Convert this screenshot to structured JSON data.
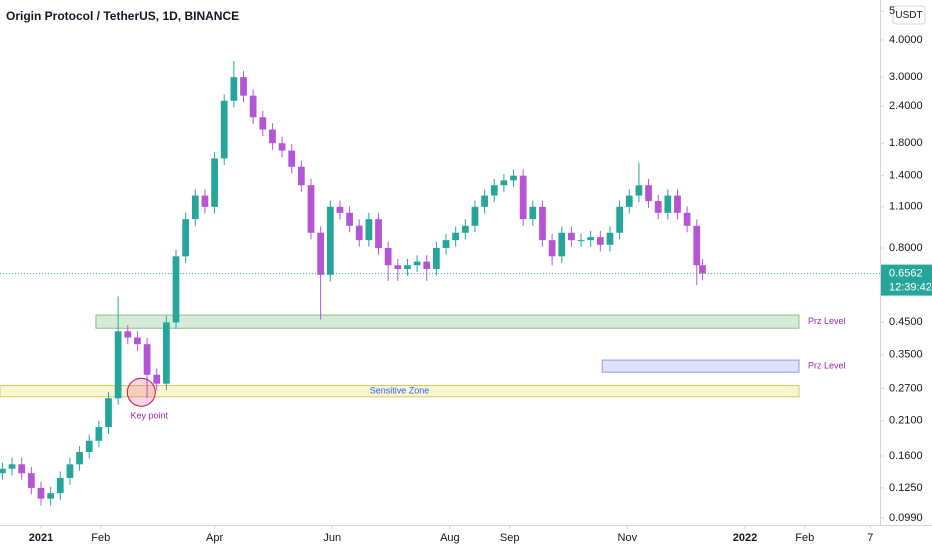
{
  "chart_data": {
    "type": "candlestick",
    "title": "Origin Protocol / TetherUS, 1D, BINANCE",
    "currency": "USDT",
    "log_scale": true,
    "up_color": "#26a69a",
    "down_color": "#b555d6",
    "xlim": [
      -21.25,
      435
    ],
    "ylim": [
      0.0938,
      5.45
    ],
    "xticks": [
      {
        "value": 0,
        "label": "2021"
      },
      {
        "value": 31,
        "label": "Feb"
      },
      {
        "value": 90,
        "label": "Apr"
      },
      {
        "value": 151,
        "label": "Jun"
      },
      {
        "value": 212,
        "label": "Aug"
      },
      {
        "value": 243,
        "label": "Sep"
      },
      {
        "value": 304,
        "label": "Nov"
      },
      {
        "value": 365,
        "label": "2022"
      },
      {
        "value": 396,
        "label": "Feb"
      },
      {
        "value": 430,
        "label": "7"
      }
    ],
    "yticks": [
      5,
      {
        "value": 4,
        "label": "4.0000"
      },
      {
        "value": 3,
        "label": "3.0000"
      },
      {
        "value": 2.4,
        "label": "2.4000"
      },
      {
        "value": 1.8,
        "label": "1.8000"
      },
      {
        "value": 1.4,
        "label": "1.4000"
      },
      {
        "value": 1.1,
        "label": "1.1000"
      },
      {
        "value": 0.8,
        "label": "0.8000"
      },
      {
        "value": 0.45,
        "label": "0.4500"
      },
      {
        "value": 0.35,
        "label": "0.3500"
      },
      {
        "value": 0.27,
        "label": "0.2700"
      },
      {
        "value": 0.21,
        "label": "0.2100"
      },
      {
        "value": 0.16,
        "label": "0.1600"
      },
      {
        "value": 0.125,
        "label": "0.1250"
      },
      {
        "value": 0.099,
        "label": "0.0990"
      }
    ],
    "last_price": 0.6562,
    "countdown": "12:39:42",
    "x": [
      -20,
      -15,
      -10,
      -5,
      0,
      5,
      10,
      15,
      20,
      25,
      30,
      35,
      40,
      45,
      50,
      55,
      60,
      65,
      70,
      75,
      80,
      85,
      90,
      95,
      100,
      105,
      110,
      115,
      120,
      125,
      130,
      135,
      140,
      145,
      150,
      155,
      160,
      165,
      170,
      175,
      180,
      185,
      190,
      195,
      200,
      205,
      210,
      215,
      220,
      225,
      230,
      235,
      240,
      245,
      250,
      255,
      260,
      265,
      270,
      275,
      280,
      285,
      290,
      295,
      300,
      305,
      310,
      315,
      320,
      325,
      330,
      335,
      340,
      343
    ],
    "ohlc": [
      [
        0.14,
        0.152,
        0.133,
        0.145
      ],
      [
        0.145,
        0.158,
        0.138,
        0.15
      ],
      [
        0.15,
        0.158,
        0.133,
        0.14
      ],
      [
        0.14,
        0.147,
        0.119,
        0.125
      ],
      [
        0.125,
        0.131,
        0.109,
        0.115
      ],
      [
        0.115,
        0.126,
        0.109,
        0.12
      ],
      [
        0.12,
        0.142,
        0.114,
        0.135
      ],
      [
        0.135,
        0.158,
        0.128,
        0.15
      ],
      [
        0.15,
        0.173,
        0.143,
        0.165
      ],
      [
        0.165,
        0.189,
        0.157,
        0.18
      ],
      [
        0.18,
        0.21,
        0.171,
        0.2
      ],
      [
        0.2,
        0.263,
        0.19,
        0.25
      ],
      [
        0.25,
        0.55,
        0.238,
        0.42
      ],
      [
        0.42,
        0.441,
        0.38,
        0.4
      ],
      [
        0.4,
        0.42,
        0.361,
        0.38
      ],
      [
        0.38,
        0.399,
        0.25,
        0.3
      ],
      [
        0.3,
        0.315,
        0.266,
        0.28
      ],
      [
        0.28,
        0.473,
        0.266,
        0.45
      ],
      [
        0.45,
        0.788,
        0.428,
        0.75
      ],
      [
        0.75,
        1.05,
        0.713,
        1.0
      ],
      [
        1.0,
        1.26,
        0.95,
        1.2
      ],
      [
        1.2,
        1.26,
        1.045,
        1.1
      ],
      [
        1.1,
        1.68,
        1.045,
        1.6
      ],
      [
        1.6,
        2.625,
        1.52,
        2.5
      ],
      [
        2.5,
        3.4,
        2.375,
        3.0
      ],
      [
        3.0,
        3.15,
        2.47,
        2.6
      ],
      [
        2.6,
        2.73,
        2.09,
        2.2
      ],
      [
        2.2,
        2.31,
        1.9,
        2.0
      ],
      [
        2.0,
        2.1,
        1.71,
        1.8
      ],
      [
        1.8,
        1.89,
        1.615,
        1.7
      ],
      [
        1.7,
        1.785,
        1.425,
        1.5
      ],
      [
        1.5,
        1.575,
        1.235,
        1.3
      ],
      [
        1.3,
        1.365,
        0.855,
        0.9
      ],
      [
        0.9,
        0.945,
        0.46,
        0.65
      ],
      [
        0.65,
        1.155,
        0.618,
        1.1
      ],
      [
        1.1,
        1.155,
        0.998,
        1.05
      ],
      [
        1.05,
        1.103,
        0.903,
        0.95
      ],
      [
        0.95,
        0.998,
        0.808,
        0.85
      ],
      [
        0.85,
        1.05,
        0.808,
        1.0
      ],
      [
        1.0,
        1.05,
        0.76,
        0.8
      ],
      [
        0.8,
        0.84,
        0.62,
        0.7
      ],
      [
        0.7,
        0.735,
        0.62,
        0.68
      ],
      [
        0.68,
        0.735,
        0.646,
        0.7
      ],
      [
        0.7,
        0.756,
        0.665,
        0.72
      ],
      [
        0.72,
        0.756,
        0.62,
        0.68
      ],
      [
        0.68,
        0.84,
        0.646,
        0.8
      ],
      [
        0.8,
        0.893,
        0.76,
        0.85
      ],
      [
        0.85,
        0.945,
        0.808,
        0.9
      ],
      [
        0.9,
        0.998,
        0.855,
        0.95
      ],
      [
        0.95,
        1.155,
        0.903,
        1.1
      ],
      [
        1.1,
        1.26,
        1.045,
        1.2
      ],
      [
        1.2,
        1.365,
        1.14,
        1.3
      ],
      [
        1.3,
        1.418,
        1.235,
        1.35
      ],
      [
        1.35,
        1.47,
        1.283,
        1.4
      ],
      [
        1.4,
        1.47,
        0.95,
        1.0
      ],
      [
        1.0,
        1.155,
        0.95,
        1.1
      ],
      [
        1.1,
        1.155,
        0.808,
        0.85
      ],
      [
        0.85,
        0.893,
        0.7,
        0.75
      ],
      [
        0.75,
        0.945,
        0.713,
        0.9
      ],
      [
        0.9,
        0.945,
        0.808,
        0.85
      ],
      [
        0.85,
        0.893,
        0.808,
        0.85
      ],
      [
        0.85,
        0.914,
        0.808,
        0.87
      ],
      [
        0.87,
        0.914,
        0.779,
        0.82
      ],
      [
        0.82,
        0.945,
        0.779,
        0.9
      ],
      [
        0.9,
        1.155,
        0.855,
        1.1
      ],
      [
        1.1,
        1.26,
        1.045,
        1.2
      ],
      [
        1.2,
        1.55,
        1.14,
        1.3
      ],
      [
        1.3,
        1.365,
        1.093,
        1.15
      ],
      [
        1.15,
        1.208,
        0.998,
        1.05
      ],
      [
        1.05,
        1.26,
        0.998,
        1.2
      ],
      [
        1.2,
        1.26,
        0.998,
        1.05
      ],
      [
        1.05,
        1.103,
        0.903,
        0.95
      ],
      [
        0.95,
        0.998,
        0.6,
        0.7
      ],
      [
        0.7,
        0.735,
        0.623,
        0.6562
      ]
    ],
    "zones": [
      {
        "x": [
          28.5,
          393
        ],
        "y": [
          0.43,
          0.476
        ],
        "color": "#d6ecd9",
        "border": "#7fbf8a",
        "side_label": "Prz Level"
      },
      {
        "x": [
          291,
          393
        ],
        "y": [
          0.306,
          0.336
        ],
        "color": "#dde3fb",
        "border": "#8a9be8",
        "side_label": "Prz Level"
      },
      {
        "x": [
          -21.25,
          393
        ],
        "y": [
          0.253,
          0.276
        ],
        "color": "#fbf6d2",
        "border": "#d8c765",
        "label": "Sensitive Zone"
      }
    ],
    "marker": {
      "x": 52,
      "y": 0.262,
      "label": "Key point"
    }
  }
}
